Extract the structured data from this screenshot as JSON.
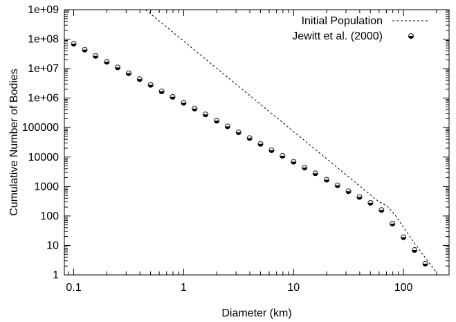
{
  "chart_data": {
    "type": "scatter",
    "xlabel": "Diameter (km)",
    "ylabel": "Cumulative Number of Bodies",
    "xscale": "log",
    "yscale": "log",
    "xlim": [
      0.0822,
      260
    ],
    "ylim": [
      1,
      1000000000
    ],
    "x_ticks": [
      {
        "value": 0.1,
        "label": "0.1"
      },
      {
        "value": 1,
        "label": "1"
      },
      {
        "value": 10,
        "label": "10"
      },
      {
        "value": 100,
        "label": "100"
      }
    ],
    "y_ticks": [
      {
        "value": 1,
        "label": "1"
      },
      {
        "value": 10,
        "label": "10"
      },
      {
        "value": 100,
        "label": "100"
      },
      {
        "value": 1000,
        "label": "1000"
      },
      {
        "value": 10000,
        "label": "10000"
      },
      {
        "value": 100000,
        "label": "100000"
      },
      {
        "value": 1000000,
        "label": "1e+06"
      },
      {
        "value": 10000000,
        "label": "1e+07"
      },
      {
        "value": 100000000,
        "label": "1e+08"
      },
      {
        "value": 1000000000,
        "label": "1e+09"
      }
    ],
    "legend_position": "top-right",
    "series": [
      {
        "name": "Initial Population",
        "style": "dashed-line",
        "color": "#000000",
        "x": [
          0.45,
          60,
          70,
          85,
          130,
          200
        ],
        "y": [
          1000000000,
          300,
          230,
          100,
          10,
          1.2
        ]
      },
      {
        "name": "Jewitt et al. (2000)",
        "style": "half-filled-circle",
        "color": "#000000",
        "x": [
          0.1,
          0.126,
          0.158,
          0.2,
          0.251,
          0.316,
          0.398,
          0.501,
          0.631,
          0.794,
          1.0,
          1.26,
          1.58,
          2.0,
          2.51,
          3.16,
          3.98,
          5.01,
          6.31,
          7.94,
          10.0,
          12.6,
          15.8,
          20.0,
          25.1,
          31.6,
          39.8,
          50.1,
          63.1,
          79.4,
          100,
          126,
          158
        ],
        "y": [
          70000000,
          44000000,
          27000000,
          17000000,
          11000000,
          7000000,
          4400000,
          2800000,
          1700000,
          1100000,
          690000,
          440000,
          280000,
          170000,
          110000,
          69000,
          44000,
          28000,
          17000,
          11000,
          6900,
          4400,
          2800,
          1700,
          1100,
          690,
          440,
          280,
          160,
          55,
          19,
          7,
          2.4
        ]
      }
    ]
  }
}
